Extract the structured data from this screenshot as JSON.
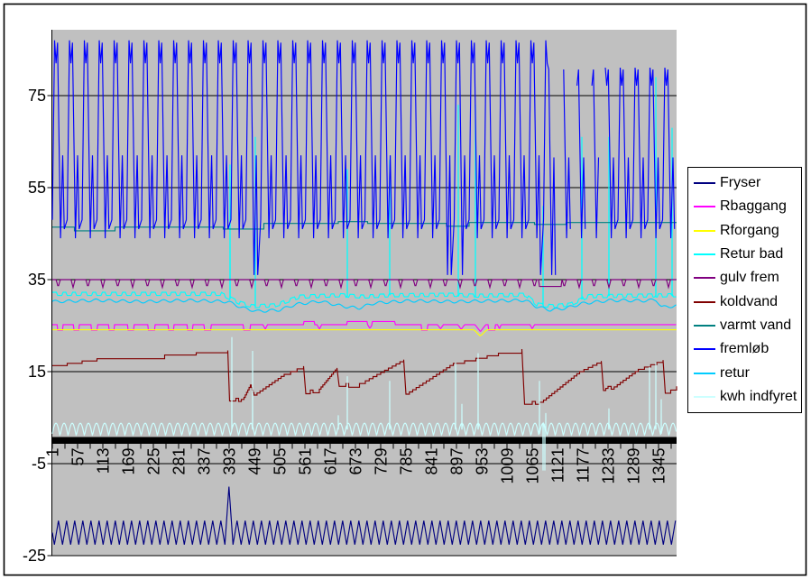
{
  "window": {
    "background": "#FFFFFF",
    "border_color": "#000000"
  },
  "chart_data": {
    "type": "line",
    "title": "",
    "plot_bg": "#C0C0C0",
    "gridline_color": "#000000",
    "axis_color": "#000000",
    "x_axis": {
      "tick_labels": [
        "1",
        "57",
        "113",
        "169",
        "225",
        "281",
        "337",
        "393",
        "449",
        "505",
        "561",
        "617",
        "673",
        "729",
        "785",
        "841",
        "897",
        "953",
        "1009",
        "1065",
        "1121",
        "1177",
        "1233",
        "1289",
        "1345"
      ],
      "label_step": 56,
      "x_range": [
        1,
        1385
      ],
      "crosses_at_value": 0
    },
    "y_axis": {
      "ticks": [
        75,
        55,
        35,
        15,
        -5,
        -25
      ],
      "ylim": [
        -25,
        89.3
      ]
    },
    "legend": {
      "position": "right",
      "bg": "#FFFFFF",
      "border_color": "#000000"
    },
    "series": [
      {
        "name": "Fryser",
        "color": "#000080",
        "gen": {
          "kind": "zigzag",
          "min": -22.6,
          "max": -17.4,
          "period": 18,
          "spikes": [
            {
              "cat": 393,
              "v": -10
            }
          ]
        }
      },
      {
        "name": "Rbaggang",
        "color": "#FF00FF",
        "gen": {
          "kind": "segments",
          "base": 25.2,
          "sample": 1.5,
          "overrides": [
            {
              "start": 12,
              "end": 24,
              "v": 24.0,
              "shape": "flat"
            },
            {
              "start": 48,
              "end": 60,
              "v": 24.0,
              "shape": "flat"
            },
            {
              "start": 88,
              "end": 100,
              "v": 24.0,
              "shape": "flat"
            },
            {
              "start": 126,
              "end": 138,
              "v": 24.0,
              "shape": "flat"
            },
            {
              "start": 168,
              "end": 182,
              "v": 24.0,
              "shape": "flat"
            },
            {
              "start": 214,
              "end": 228,
              "v": 24.0,
              "shape": "flat"
            },
            {
              "start": 258,
              "end": 270,
              "v": 24.0,
              "shape": "flat"
            },
            {
              "start": 300,
              "end": 312,
              "v": 24.0,
              "shape": "flat"
            },
            {
              "start": 338,
              "end": 352,
              "v": 24.0,
              "shape": "flat"
            },
            {
              "start": 425,
              "end": 440,
              "v": 24.0,
              "shape": "flat"
            },
            {
              "start": 468,
              "end": 478,
              "v": 24.2,
              "shape": "v"
            },
            {
              "start": 558,
              "end": 582,
              "v": 25.9,
              "shape": "flat"
            },
            {
              "start": 588,
              "end": 598,
              "v": 24.2,
              "shape": "v"
            },
            {
              "start": 655,
              "end": 760,
              "v": 25.9,
              "shape": "flat"
            },
            {
              "start": 700,
              "end": 710,
              "v": 24.4,
              "shape": "v"
            },
            {
              "start": 820,
              "end": 832,
              "v": 24.0,
              "shape": "flat"
            },
            {
              "start": 855,
              "end": 868,
              "v": 24.3,
              "shape": "v"
            },
            {
              "start": 900,
              "end": 915,
              "v": 24.2,
              "shape": "v"
            },
            {
              "start": 938,
              "end": 962,
              "v": 23.7,
              "shape": "v"
            },
            {
              "start": 968,
              "end": 982,
              "v": 24.0,
              "shape": "flat"
            },
            {
              "start": 988,
              "end": 996,
              "v": 24.3,
              "shape": "v"
            },
            {
              "start": 1060,
              "end": 1070,
              "v": 24.3,
              "shape": "v"
            }
          ]
        }
      },
      {
        "name": "Rforgang",
        "color": "#FFFF00",
        "gen": {
          "kind": "segments",
          "base": 24.1,
          "sample": 4,
          "overrides": [
            {
              "start": 936,
              "end": 964,
              "v": 22.7,
              "shape": "v"
            }
          ]
        }
      },
      {
        "name": "Retur bad",
        "color": "#00FFFF",
        "gen": {
          "kind": "ripple",
          "amp": 0.35,
          "period": 22,
          "square": true,
          "points": [
            [
              1,
              31.9
            ],
            [
              375,
              31.9
            ],
            [
              415,
              30.0
            ],
            [
              445,
              29.2
            ],
            [
              495,
              29.4
            ],
            [
              550,
              31.3
            ],
            [
              640,
              31.6
            ],
            [
              690,
              31.3
            ],
            [
              750,
              31.6
            ],
            [
              890,
              31.7
            ],
            [
              940,
              31.5
            ],
            [
              1050,
              31.7
            ],
            [
              1075,
              29.6
            ],
            [
              1110,
              29.2
            ],
            [
              1150,
              29.6
            ],
            [
              1190,
              31.4
            ],
            [
              1385,
              31.6
            ]
          ],
          "spikes": [
            {
              "cat": 395,
              "v": 60
            },
            {
              "cat": 451,
              "v": 66
            },
            {
              "cat": 655,
              "v": 59
            },
            {
              "cat": 749,
              "v": 61
            },
            {
              "cat": 901,
              "v": 73
            },
            {
              "cat": 939,
              "v": 73
            },
            {
              "cat": 1089,
              "v": 51
            },
            {
              "cat": 1175,
              "v": 66
            },
            {
              "cat": 1235,
              "v": 66
            },
            {
              "cat": 1339,
              "v": 79
            },
            {
              "cat": 1375,
              "v": 68
            }
          ]
        }
      },
      {
        "name": "gulv frem",
        "color": "#800080",
        "gen": {
          "kind": "segments",
          "base": 35.0,
          "sample": 2,
          "periodic_dips": {
            "start": 14,
            "period": 33,
            "width": 9,
            "v": 33.3
          },
          "overrides": [
            {
              "start": 1080,
              "end": 1130,
              "v": 33.5,
              "shape": "flat"
            }
          ]
        }
      },
      {
        "name": "koldvand",
        "color": "#800000",
        "gen": {
          "kind": "breakpoints",
          "mode": "stairs",
          "step": 0.45,
          "points": [
            [
              1,
              16.3
            ],
            [
              100,
              17.8
            ],
            [
              250,
              18.6
            ],
            [
              390,
              19.6
            ],
            [
              394,
              8.6
            ],
            [
              408,
              9.2
            ],
            [
              414,
              8.5
            ],
            [
              426,
              9.4
            ],
            [
              440,
              12.1
            ],
            [
              448,
              9.9
            ],
            [
              515,
              14.4
            ],
            [
              558,
              16.2
            ],
            [
              563,
              10.2
            ],
            [
              573,
              11.0
            ],
            [
              579,
              10.4
            ],
            [
              593,
              11.2
            ],
            [
              632,
              15.8
            ],
            [
              637,
              11.8
            ],
            [
              652,
              12.4
            ],
            [
              658,
              11.6
            ],
            [
              682,
              12.4
            ],
            [
              695,
              13.0
            ],
            [
              780,
              17.6
            ],
            [
              785,
              10.1
            ],
            [
              890,
              16.8
            ],
            [
              990,
              19.0
            ],
            [
              1042,
              19.9
            ],
            [
              1048,
              7.9
            ],
            [
              1065,
              8.5
            ],
            [
              1072,
              7.9
            ],
            [
              1090,
              8.8
            ],
            [
              1170,
              15.0
            ],
            [
              1218,
              17.3
            ],
            [
              1223,
              10.9
            ],
            [
              1233,
              11.8
            ],
            [
              1240,
              11.2
            ],
            [
              1300,
              15.5
            ],
            [
              1355,
              17.5
            ],
            [
              1360,
              10.3
            ],
            [
              1372,
              11.0
            ],
            [
              1385,
              11.8
            ]
          ]
        }
      },
      {
        "name": "varmt vand",
        "color": "#008080",
        "gen": {
          "kind": "breakpoints",
          "mode": "hold",
          "points": [
            [
              1,
              46.4
            ],
            [
              50,
              45.6
            ],
            [
              140,
              46.4
            ],
            [
              380,
              46.0
            ],
            [
              470,
              47.2
            ],
            [
              635,
              47.6
            ],
            [
              700,
              47.2
            ],
            [
              875,
              46.6
            ],
            [
              925,
              47.4
            ],
            [
              1070,
              47.0
            ],
            [
              1140,
              47.4
            ],
            [
              1385,
              47.4
            ]
          ]
        }
      },
      {
        "name": "fremløb",
        "color": "#0000FF",
        "gen": {
          "kind": "cycle",
          "period": 33,
          "keyframes": [
            [
              0,
              48
            ],
            [
              0.15,
              87
            ],
            [
              0.25,
              82
            ],
            [
              0.35,
              86.5
            ],
            [
              0.55,
              44
            ],
            [
              0.7,
              62
            ],
            [
              0.8,
              46
            ],
            [
              1,
              48
            ]
          ],
          "damp_after": 1100,
          "damp_to": 0.78,
          "deep_troughs": [
            453,
            892,
            1101
          ],
          "deep_v": 36,
          "gaps": [
            [
              1120,
              1132
            ],
            [
              1152,
              1163
            ],
            [
              1183,
              1194
            ],
            [
              1214,
              1222
            ]
          ]
        }
      },
      {
        "name": "retur",
        "color": "#00CCFF",
        "gen": {
          "kind": "ripple",
          "amp": 0.3,
          "period": 30,
          "square": false,
          "points": [
            [
              1,
              30.2
            ],
            [
              100,
              30.5
            ],
            [
              200,
              30.2
            ],
            [
              300,
              30.5
            ],
            [
              390,
              30.2
            ],
            [
              425,
              28.8
            ],
            [
              455,
              28.1
            ],
            [
              505,
              28.4
            ],
            [
              540,
              29.6
            ],
            [
              595,
              30.3
            ],
            [
              645,
              29.2
            ],
            [
              680,
              28.8
            ],
            [
              715,
              29.9
            ],
            [
              795,
              30.4
            ],
            [
              890,
              30.2
            ],
            [
              990,
              30.4
            ],
            [
              1050,
              30.5
            ],
            [
              1075,
              29.1
            ],
            [
              1105,
              28.4
            ],
            [
              1140,
              28.8
            ],
            [
              1175,
              29.8
            ],
            [
              1240,
              30.5
            ],
            [
              1310,
              30.4
            ],
            [
              1340,
              30.6
            ],
            [
              1352,
              29.0
            ],
            [
              1385,
              29.3
            ]
          ],
          "spikes": []
        }
      },
      {
        "name": "kwh indfyret",
        "color": "#CCFFFF",
        "gen": {
          "kind": "scallop",
          "min": 1.0,
          "max": 3.8,
          "period": 18,
          "spikes": [
            {
              "cat": 399,
              "v": 22.5
            },
            {
              "cat": 445,
              "v": 19.5
            },
            {
              "cat": 635,
              "v": 5.5
            },
            {
              "cat": 655,
              "v": 14
            },
            {
              "cat": 749,
              "v": 13
            },
            {
              "cat": 895,
              "v": 17
            },
            {
              "cat": 909,
              "v": 8
            },
            {
              "cat": 945,
              "v": 19
            },
            {
              "cat": 1081,
              "v": 13
            },
            {
              "cat": 1089,
              "v": -6.5
            },
            {
              "cat": 1093,
              "v": -6.5
            },
            {
              "cat": 1095,
              "v": 6
            },
            {
              "cat": 1235,
              "v": 7
            },
            {
              "cat": 1325,
              "v": 16
            },
            {
              "cat": 1339,
              "v": 17
            },
            {
              "cat": 1351,
              "v": 9
            }
          ]
        }
      }
    ]
  }
}
